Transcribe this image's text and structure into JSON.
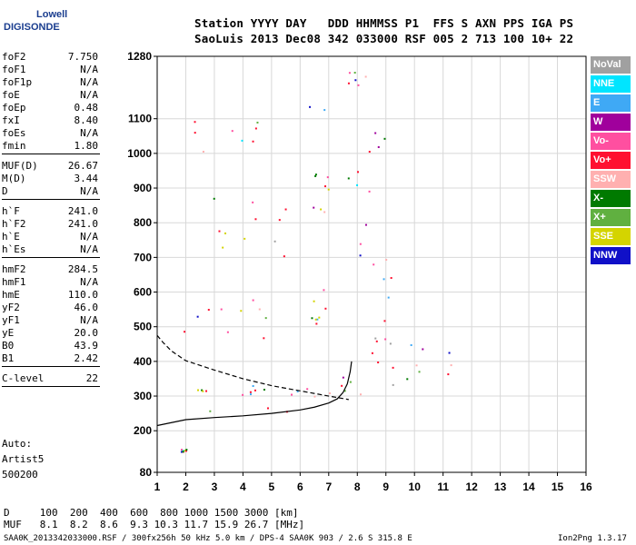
{
  "logo": {
    "line1": "Lowell",
    "line2": "DIGISONDE"
  },
  "header": {
    "line1": "Station YYYY DAY   DDD HHMMSS P1  FFS S AXN PPS IGA PS",
    "line2": "SaoLuis 2013 Dec08 342 033000 RSF 005 2 713 100 10+ 22"
  },
  "params_groups": [
    [
      [
        "foF2",
        "7.750"
      ],
      [
        "foF1",
        "N/A"
      ],
      [
        "foF1p",
        "N/A"
      ],
      [
        "foE",
        "N/A"
      ],
      [
        "foEp",
        "0.48"
      ],
      [
        "fxI",
        "8.40"
      ],
      [
        "foEs",
        "N/A"
      ],
      [
        "fmin",
        "1.80"
      ]
    ],
    [
      [
        "MUF(D)",
        "26.67"
      ],
      [
        "M(D)",
        "3.44"
      ],
      [
        "D",
        "N/A"
      ]
    ],
    [
      [
        "h`F",
        "241.0"
      ],
      [
        "h`F2",
        "241.0"
      ],
      [
        "h`E",
        "N/A"
      ],
      [
        "h`Es",
        "N/A"
      ]
    ],
    [
      [
        "hmF2",
        "284.5"
      ],
      [
        "hmF1",
        "N/A"
      ],
      [
        "hmE",
        "110.0"
      ],
      [
        "yF2",
        "46.0"
      ],
      [
        "yF1",
        "N/A"
      ],
      [
        "yE",
        "20.0"
      ],
      [
        "B0",
        "43.9"
      ],
      [
        "B1",
        "2.42"
      ]
    ],
    [
      [
        "C-level",
        "22"
      ]
    ]
  ],
  "auto_notes": [
    "Auto:",
    "Artist5",
    "500200"
  ],
  "footer": {
    "d_line": "D     100  200  400  600  800 1000 1500 3000 [km]",
    "muf_line": "MUF   8.1  8.2  8.6  9.3 10.3 11.7 15.9 26.7 [MHz]",
    "info": "SAA0K_2013342033000.RSF / 300fx256h 50 kHz 5.0 km / DPS-4 SAA0K 903 / 2.6 S 315.8 E",
    "version": "Ion2Png 1.3.17"
  },
  "legend": [
    {
      "label": "NoVal",
      "color": "#a0a0a0"
    },
    {
      "label": "NNE",
      "color": "#00e5ff"
    },
    {
      "label": "E",
      "color": "#3fa9f5"
    },
    {
      "label": "W",
      "color": "#a0009c"
    },
    {
      "label": "Vo-",
      "color": "#ff4fa0"
    },
    {
      "label": "Vo+",
      "color": "#ff1030"
    },
    {
      "label": "SSW",
      "color": "#ffb0b0"
    },
    {
      "label": "X-",
      "color": "#007a00"
    },
    {
      "label": "X+",
      "color": "#60b040"
    },
    {
      "label": "SSE",
      "color": "#d4d400"
    },
    {
      "label": "NNW",
      "color": "#1010c8"
    }
  ],
  "chart_data": {
    "type": "scatter",
    "x_ticks": [
      1,
      2,
      3,
      4,
      5,
      6,
      7,
      8,
      9,
      10,
      11,
      12,
      13,
      14,
      15,
      16
    ],
    "y_ticks": [
      80,
      200,
      300,
      400,
      500,
      600,
      700,
      800,
      900,
      1000,
      1100,
      1280
    ],
    "xlim": [
      1,
      16
    ],
    "ylim": [
      80,
      1280
    ],
    "grid": true,
    "traces": [
      {
        "style": "solid",
        "x": [
          1.0,
          2,
          3,
          4,
          5,
          6,
          6.5,
          7,
          7.3,
          7.5,
          7.65,
          7.75,
          7.8
        ],
        "y": [
          215,
          232,
          238,
          243,
          250,
          260,
          268,
          280,
          292,
          310,
          335,
          370,
          400
        ]
      },
      {
        "style": "dashed",
        "x": [
          1.0,
          1.2,
          1.5,
          2,
          3,
          4,
          5,
          6,
          7,
          7.7
        ],
        "y": [
          475,
          455,
          430,
          402,
          375,
          350,
          330,
          315,
          300,
          290
        ]
      }
    ],
    "clusters": [
      {
        "x": [
          1.7,
          6.5
        ],
        "y": [
          240,
          330
        ]
      },
      {
        "x": [
          1.7,
          4.8
        ],
        "y": [
          300,
          345
        ]
      },
      {
        "x": [
          6.2,
          9.4
        ],
        "y": [
          300,
          380
        ]
      },
      {
        "x": [
          7.5,
          9.3
        ],
        "y": [
          350,
          520
        ]
      },
      {
        "x": [
          9.7,
          11.5
        ],
        "y": [
          300,
          460
        ]
      },
      {
        "x": [
          1.9,
          6.0
        ],
        "y": [
          450,
          600
        ]
      },
      {
        "x": [
          6.3,
          7.0
        ],
        "y": [
          510,
          650
        ]
      },
      {
        "x": [
          7.6,
          9.5
        ],
        "y": [
          580,
          800
        ]
      },
      {
        "x": [
          1.9,
          5.5
        ],
        "y": [
          700,
          880
        ]
      },
      {
        "x": [
          6.3,
          7.0
        ],
        "y": [
          830,
          960
        ]
      },
      {
        "x": [
          7.6,
          9.2
        ],
        "y": [
          880,
          1080
        ]
      },
      {
        "x": [
          2.0,
          4.5
        ],
        "y": [
          980,
          1120
        ]
      },
      {
        "x": [
          6.3,
          8.3
        ],
        "y": [
          1120,
          1280
        ]
      },
      {
        "x": [
          1.8,
          2.0
        ],
        "y": [
          140,
          150
        ]
      }
    ]
  }
}
